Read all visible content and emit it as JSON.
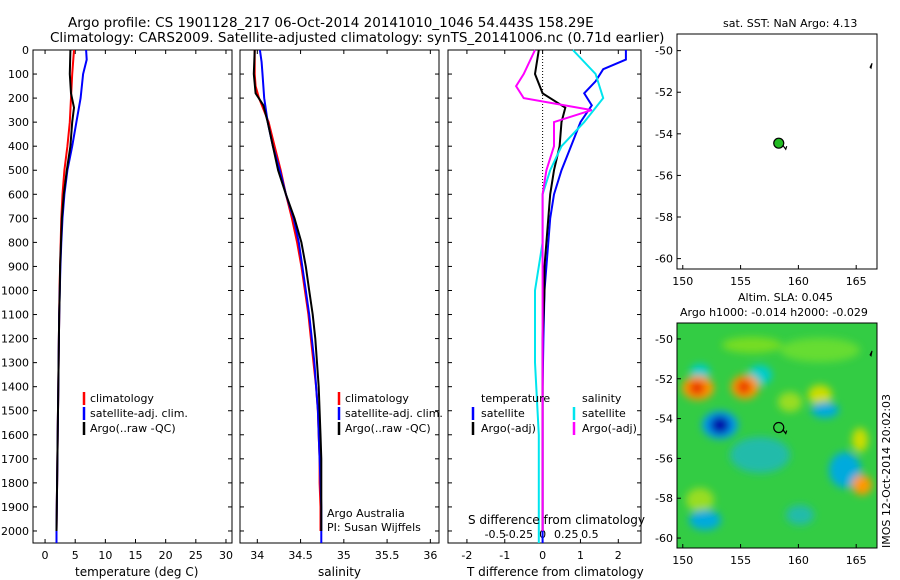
{
  "header": {
    "title_line1": "Argo profile: CS 1901128_217 06-Oct-2014 20141010_1046 54.443S 158.29E",
    "title_line2": "Climatology: CARS2009. Satellite-adjusted climatology: synTS_20141006.nc (0.71d earlier)"
  },
  "colors": {
    "climatology": "#ff0000",
    "satellite": "#0000ff",
    "argo": "#000000",
    "sat_salinity": "#00e5ee",
    "argo_salinity_diff": "#ff00ff",
    "float_marker": "#22bb22"
  },
  "side": {
    "map_title": "sat. SST: NaN Argo: 4.13",
    "sla_title1": "Altim. SLA: 0.045",
    "sla_title2": "Argo h1000: -0.014 h2000: -0.029",
    "imos_stamp": "IMOS 12-Oct-2014 20:02:03"
  },
  "chart_data": [
    {
      "type": "line",
      "panel": "temperature",
      "xlabel": "temperature (deg C)",
      "ylabel": "",
      "xlim": [
        -2,
        31
      ],
      "ylim": [
        2050,
        0
      ],
      "xticks": [
        "0",
        "5",
        "10",
        "15",
        "20",
        "25",
        "30"
      ],
      "yticks": [
        "0",
        "100",
        "200",
        "300",
        "400",
        "500",
        "600",
        "700",
        "800",
        "900",
        "1000",
        "1100",
        "1200",
        "1300",
        "1400",
        "1500",
        "1600",
        "1700",
        "1800",
        "1900",
        "2000"
      ],
      "legend": [
        "climatology",
        "satellite-adj. clim.",
        "Argo(..raw -QC)"
      ],
      "series": [
        {
          "name": "climatology",
          "color": "climatology",
          "points": [
            [
              4.8,
              0
            ],
            [
              4.5,
              100
            ],
            [
              4.3,
              200
            ],
            [
              4.1,
              300
            ],
            [
              3.7,
              400
            ],
            [
              3.2,
              500
            ],
            [
              2.9,
              600
            ],
            [
              2.7,
              700
            ],
            [
              2.6,
              800
            ],
            [
              2.5,
              900
            ],
            [
              2.4,
              1000
            ],
            [
              2.35,
              1100
            ],
            [
              2.3,
              1200
            ],
            [
              2.25,
              1300
            ],
            [
              2.2,
              1400
            ],
            [
              2.15,
              1500
            ],
            [
              2.1,
              1600
            ],
            [
              2.05,
              1700
            ],
            [
              2,
              1800
            ],
            [
              1.95,
              1900
            ],
            [
              1.9,
              2000
            ]
          ]
        },
        {
          "name": "satellite-adj. clim.",
          "color": "satellite",
          "points": [
            [
              6.8,
              0
            ],
            [
              6.9,
              40
            ],
            [
              6.3,
              100
            ],
            [
              5.9,
              200
            ],
            [
              5.2,
              300
            ],
            [
              4.5,
              400
            ],
            [
              3.7,
              500
            ],
            [
              3.2,
              600
            ],
            [
              2.9,
              700
            ],
            [
              2.7,
              800
            ],
            [
              2.55,
              900
            ],
            [
              2.45,
              1000
            ],
            [
              2.35,
              1100
            ],
            [
              2.3,
              1200
            ],
            [
              2.25,
              1300
            ],
            [
              2.2,
              1400
            ],
            [
              2.15,
              1500
            ],
            [
              2.1,
              1600
            ],
            [
              2.05,
              1700
            ],
            [
              2,
              1800
            ],
            [
              1.95,
              1900
            ],
            [
              1.9,
              2000
            ],
            [
              1.9,
              2050
            ]
          ]
        },
        {
          "name": "Argo(..raw -QC)",
          "color": "argo",
          "points": [
            [
              4.2,
              0
            ],
            [
              4.1,
              100
            ],
            [
              4.3,
              180
            ],
            [
              4.8,
              240
            ],
            [
              4.5,
              300
            ],
            [
              4.2,
              400
            ],
            [
              3.6,
              500
            ],
            [
              3.1,
              600
            ],
            [
              2.8,
              700
            ],
            [
              2.65,
              800
            ],
            [
              2.5,
              900
            ],
            [
              2.45,
              1000
            ],
            [
              2.35,
              1100
            ],
            [
              2.3,
              1200
            ],
            [
              2.25,
              1300
            ],
            [
              2.2,
              1400
            ],
            [
              2.15,
              1500
            ],
            [
              2.1,
              1600
            ],
            [
              2.05,
              1700
            ],
            [
              2,
              1800
            ],
            [
              1.95,
              1900
            ],
            [
              1.9,
              2000
            ]
          ]
        }
      ]
    },
    {
      "type": "line",
      "panel": "salinity",
      "xlabel": "salinity",
      "ylabel": "",
      "xlim": [
        33.8,
        36.1
      ],
      "ylim": [
        2050,
        0
      ],
      "xticks": [
        "34",
        "34.5",
        "35",
        "35.5",
        "36"
      ],
      "legend": [
        "climatology",
        "satellite-adj. clim.",
        "Argo(..raw -QC)"
      ],
      "annotation": [
        "Argo Australia",
        "PI: Susan Wijffels"
      ],
      "series": [
        {
          "name": "climatology",
          "color": "climatology",
          "points": [
            [
              33.97,
              0
            ],
            [
              33.97,
              100
            ],
            [
              33.98,
              150
            ],
            [
              34.02,
              200
            ],
            [
              34.13,
              300
            ],
            [
              34.2,
              400
            ],
            [
              34.27,
              500
            ],
            [
              34.33,
              600
            ],
            [
              34.4,
              700
            ],
            [
              34.46,
              800
            ],
            [
              34.51,
              900
            ],
            [
              34.55,
              1000
            ],
            [
              34.59,
              1100
            ],
            [
              34.62,
              1200
            ],
            [
              34.65,
              1300
            ],
            [
              34.68,
              1400
            ],
            [
              34.7,
              1500
            ],
            [
              34.71,
              1600
            ],
            [
              34.72,
              1700
            ],
            [
              34.72,
              1800
            ],
            [
              34.73,
              1900
            ],
            [
              34.73,
              2000
            ]
          ]
        },
        {
          "name": "satellite-adj. clim.",
          "color": "satellite",
          "points": [
            [
              34.03,
              0
            ],
            [
              34.05,
              50
            ],
            [
              34.06,
              100
            ],
            [
              34.08,
              200
            ],
            [
              34.12,
              300
            ],
            [
              34.18,
              400
            ],
            [
              34.26,
              500
            ],
            [
              34.33,
              600
            ],
            [
              34.42,
              700
            ],
            [
              34.48,
              800
            ],
            [
              34.52,
              900
            ],
            [
              34.56,
              1000
            ],
            [
              34.6,
              1100
            ],
            [
              34.63,
              1200
            ],
            [
              34.66,
              1300
            ],
            [
              34.68,
              1400
            ],
            [
              34.7,
              1500
            ],
            [
              34.71,
              1600
            ],
            [
              34.72,
              1700
            ],
            [
              34.73,
              1800
            ],
            [
              34.74,
              1900
            ],
            [
              34.74,
              2000
            ],
            [
              34.74,
              2050
            ]
          ]
        },
        {
          "name": "Argo(..raw -QC)",
          "color": "argo",
          "points": [
            [
              33.97,
              0
            ],
            [
              33.96,
              100
            ],
            [
              33.98,
              180
            ],
            [
              34.07,
              230
            ],
            [
              34.12,
              300
            ],
            [
              34.18,
              400
            ],
            [
              34.24,
              500
            ],
            [
              34.33,
              600
            ],
            [
              34.43,
              700
            ],
            [
              34.51,
              800
            ],
            [
              34.56,
              900
            ],
            [
              34.6,
              1000
            ],
            [
              34.64,
              1100
            ],
            [
              34.67,
              1200
            ],
            [
              34.69,
              1300
            ],
            [
              34.71,
              1400
            ],
            [
              34.72,
              1500
            ],
            [
              34.73,
              1600
            ],
            [
              34.74,
              1700
            ],
            [
              34.74,
              1800
            ],
            [
              34.74,
              1900
            ],
            [
              34.74,
              2000
            ]
          ]
        }
      ]
    },
    {
      "type": "line",
      "panel": "difference",
      "xlabel": "T difference from climatology",
      "xlabel_top": "S difference from climatology",
      "xlim": [
        -2.5,
        2.6
      ],
      "ylim": [
        2050,
        0
      ],
      "xticks": [
        "-2",
        "-1",
        "0",
        "1",
        "2"
      ],
      "xticks_s": [
        "-0.5",
        "-0.25",
        "0",
        "0.25",
        "0.5"
      ],
      "legend_t": {
        "title": "temperature",
        "items": [
          "satellite",
          "Argo(-adj)"
        ]
      },
      "legend_s": {
        "title": "salinity",
        "items": [
          "satellite",
          "Argo(-adj)"
        ]
      },
      "series": [
        {
          "name": "T satellite",
          "color": "satellite",
          "points": [
            [
              2.2,
              0
            ],
            [
              2.2,
              40
            ],
            [
              1.6,
              80
            ],
            [
              1.4,
              130
            ],
            [
              1.1,
              180
            ],
            [
              1.3,
              230
            ],
            [
              1.0,
              300
            ],
            [
              0.75,
              400
            ],
            [
              0.5,
              500
            ],
            [
              0.3,
              600
            ],
            [
              0.2,
              700
            ],
            [
              0.15,
              800
            ],
            [
              0.1,
              900
            ],
            [
              0.05,
              1000
            ],
            [
              0.02,
              1200
            ],
            [
              0,
              1400
            ],
            [
              0,
              2050
            ]
          ]
        },
        {
          "name": "T Argo(-adj)",
          "color": "argo",
          "points": [
            [
              -0.1,
              0
            ],
            [
              -0.2,
              100
            ],
            [
              0,
              180
            ],
            [
              0.6,
              240
            ],
            [
              0.5,
              300
            ],
            [
              0.45,
              400
            ],
            [
              0.3,
              500
            ],
            [
              0.2,
              600
            ],
            [
              0.15,
              700
            ],
            [
              0.1,
              800
            ],
            [
              0.05,
              900
            ],
            [
              0.05,
              1000
            ],
            [
              0,
              1200
            ],
            [
              0,
              1400
            ],
            [
              0,
              2000
            ]
          ]
        },
        {
          "name": "S satellite",
          "color": "sat_salinity",
          "points": [
            [
              0.08,
              0
            ],
            [
              0.14,
              100
            ],
            [
              0.16,
              200
            ],
            [
              0.11,
              300
            ],
            [
              0.05,
              400
            ],
            [
              0.02,
              500
            ],
            [
              0,
              600
            ],
            [
              0,
              800
            ],
            [
              -0.02,
              1000
            ],
            [
              -0.02,
              1300
            ],
            [
              -0.01,
              1600
            ],
            [
              -0.01,
              2000
            ],
            [
              -0.01,
              2050
            ]
          ]
        },
        {
          "name": "S Argo(-adj)",
          "color": "argo_salinity_diff",
          "points": [
            [
              -0.02,
              0
            ],
            [
              -0.05,
              100
            ],
            [
              -0.07,
              150
            ],
            [
              -0.05,
              200
            ],
            [
              0.13,
              250
            ],
            [
              0.03,
              300
            ],
            [
              0.03,
              400
            ],
            [
              0.01,
              500
            ],
            [
              0,
              600
            ],
            [
              0,
              800
            ],
            [
              0,
              1000
            ],
            [
              0,
              1500
            ],
            [
              0,
              2000
            ]
          ]
        }
      ]
    },
    {
      "type": "scatter",
      "panel": "location_map",
      "title": "sat. SST: NaN Argo: 4.13",
      "xlim": [
        149.5,
        166.8
      ],
      "ylim": [
        -60.5,
        -49.2
      ],
      "xticks": [
        "150",
        "155",
        "160",
        "165"
      ],
      "yticks": [
        "-50",
        "-52",
        "-54",
        "-56",
        "-58",
        "-60"
      ],
      "points": [
        [
          158.3,
          -54.45
        ],
        [
          166.2,
          -50.8
        ]
      ]
    },
    {
      "type": "heatmap",
      "panel": "sla_map",
      "title": "Altim. SLA: 0.045",
      "subtitle": "Argo h1000: -0.014 h2000: -0.029",
      "xlim": [
        149.5,
        166.8
      ],
      "ylim": [
        -60.5,
        -49.2
      ],
      "xticks": [
        "150",
        "155",
        "160",
        "165"
      ],
      "yticks": [
        "-50",
        "-52",
        "-54",
        "-56",
        "-58",
        "-60"
      ],
      "points": [
        [
          158.3,
          -54.45
        ],
        [
          166.2,
          -50.8
        ]
      ]
    }
  ]
}
